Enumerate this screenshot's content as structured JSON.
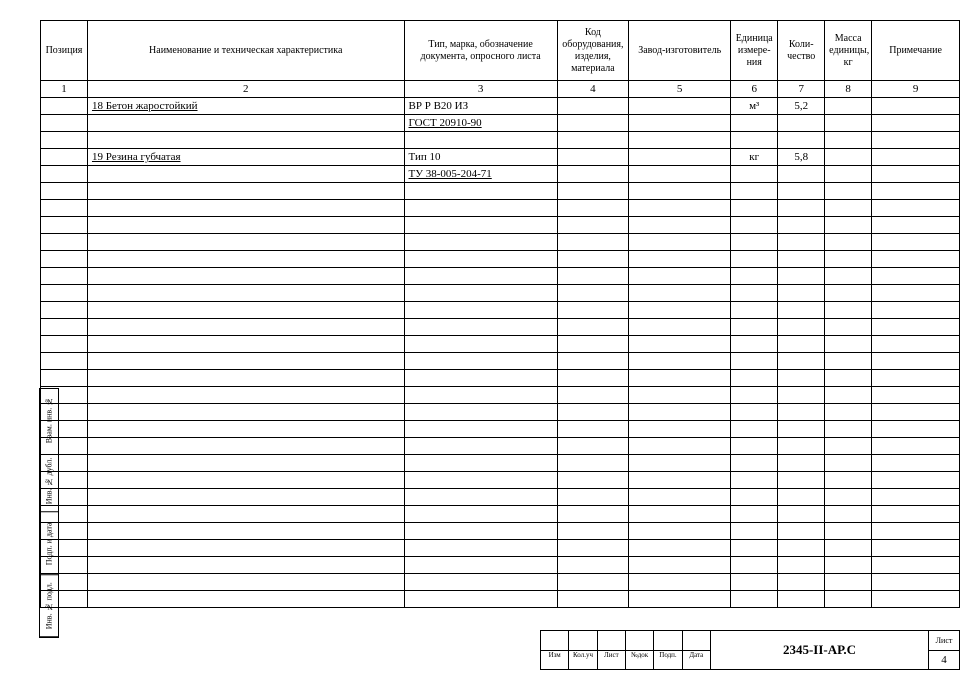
{
  "table": {
    "columns": [
      {
        "key": "pos",
        "header": "Позиция",
        "num": "1",
        "class": "col-pos"
      },
      {
        "key": "name",
        "header": "Наименование и техническая характеристика",
        "num": "2",
        "class": "col-name"
      },
      {
        "key": "type",
        "header": "Тип, марка, обозначение документа, опросного листа",
        "num": "3",
        "class": "col-type"
      },
      {
        "key": "code",
        "header": "Код оборудования, изделия, материала",
        "num": "4",
        "class": "col-code"
      },
      {
        "key": "mfr",
        "header": "Завод-изготовитель",
        "num": "5",
        "class": "col-mfr"
      },
      {
        "key": "unit",
        "header": "Единица измере-ния",
        "num": "6",
        "class": "col-unit"
      },
      {
        "key": "qty",
        "header": "Коли-чество",
        "num": "7",
        "class": "col-qty"
      },
      {
        "key": "mass",
        "header": "Масса единицы, кг",
        "num": "8",
        "class": "col-mass"
      },
      {
        "key": "note",
        "header": "Примечание",
        "num": "9",
        "class": "col-note"
      }
    ],
    "rows": [
      {
        "pos": "",
        "name": "18 Бетон жаростойкий",
        "name_underline": true,
        "type": "BР Р B20 ИЗ",
        "code": "",
        "mfr": "",
        "unit": "м³",
        "qty": "5,2",
        "mass": "",
        "note": ""
      },
      {
        "pos": "",
        "name": "",
        "type": "ГОСТ 20910-90",
        "type_underline": true,
        "code": "",
        "mfr": "",
        "unit": "",
        "qty": "",
        "mass": "",
        "note": ""
      },
      {
        "pos": "",
        "name": "",
        "type": "",
        "code": "",
        "mfr": "",
        "unit": "",
        "qty": "",
        "mass": "",
        "note": ""
      },
      {
        "pos": "",
        "name": "19 Резина губчатая",
        "name_underline": true,
        "type": "Тип 10",
        "code": "",
        "mfr": "",
        "unit": "кг",
        "qty": "5,8",
        "mass": "",
        "note": ""
      },
      {
        "pos": "",
        "name": "",
        "type": "ТУ 38-005-204-71",
        "type_underline": true,
        "code": "",
        "mfr": "",
        "unit": "",
        "qty": "",
        "mass": "",
        "note": ""
      },
      {},
      {},
      {},
      {},
      {},
      {},
      {},
      {},
      {},
      {},
      {},
      {},
      {},
      {},
      {},
      {},
      {},
      {},
      {},
      {},
      {},
      {},
      {},
      {},
      {}
    ]
  },
  "side": {
    "cells": [
      "Взам. инв. №",
      "Инв. № дубл.",
      "Подп. и дата",
      "Инв. № подл."
    ]
  },
  "titleblock": {
    "doc_number": "2345-II-АР.С",
    "sheet_label": "Лист",
    "sheet_number": "4",
    "sig_cols": [
      "Изм",
      "Кол.уч",
      "Лист",
      "№док",
      "Подп.",
      "Дата"
    ]
  }
}
